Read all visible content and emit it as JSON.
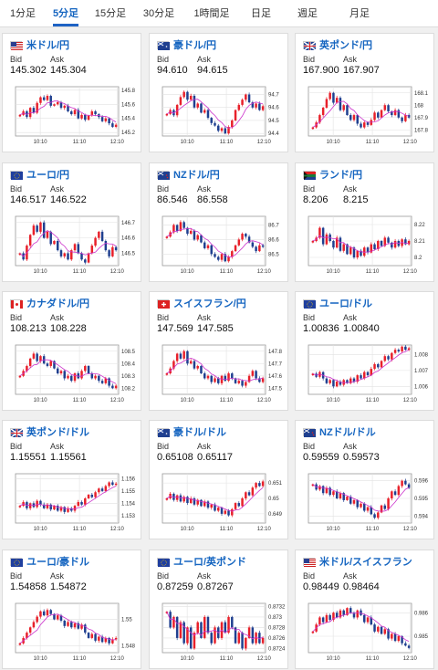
{
  "tabs": [
    {
      "label": "1分足",
      "active": false
    },
    {
      "label": "5分足",
      "active": true
    },
    {
      "label": "15分足",
      "active": false
    },
    {
      "label": "30分足",
      "active": false
    },
    {
      "label": "1時間足",
      "active": false
    },
    {
      "label": "日足",
      "active": false
    },
    {
      "label": "週足",
      "active": false
    },
    {
      "label": "月足",
      "active": false
    }
  ],
  "labels": {
    "bid": "Bid",
    "ask": "Ask"
  },
  "colors": {
    "accent": "#1565c0",
    "up": "#e8202a",
    "down": "#1f3f8f",
    "ma": "#cc33cc"
  },
  "x_ticks": [
    "10:10",
    "11:10",
    "12:10"
  ],
  "pairs": [
    {
      "name": "米ドル/円",
      "flag": "us-jp",
      "bid": "145.302",
      "ask": "145.304",
      "chart_data": {
        "type": "candlestick",
        "y_ticks": [
          "145.8",
          "145.6",
          "145.4",
          "145.2"
        ],
        "ylim": [
          145.15,
          145.85
        ],
        "close": [
          145.45,
          145.5,
          145.42,
          145.55,
          145.48,
          145.62,
          145.7,
          145.66,
          145.72,
          145.58,
          145.6,
          145.63,
          145.55,
          145.58,
          145.5,
          145.46,
          145.52,
          145.4,
          145.45,
          145.38,
          145.44,
          145.5,
          145.46,
          145.42,
          145.36,
          145.4,
          145.33,
          145.28,
          145.31
        ]
      }
    },
    {
      "name": "豪ドル/円",
      "flag": "au-jp",
      "bid": "94.610",
      "ask": "94.615",
      "chart_data": {
        "type": "candlestick",
        "y_ticks": [
          "94.7",
          "94.6",
          "94.5",
          "94.4"
        ],
        "ylim": [
          94.38,
          94.76
        ],
        "close": [
          94.55,
          94.58,
          94.54,
          94.62,
          94.68,
          94.72,
          94.66,
          94.69,
          94.6,
          94.63,
          94.56,
          94.58,
          94.52,
          94.48,
          94.46,
          94.42,
          94.44,
          94.4,
          94.45,
          94.5,
          94.58,
          94.62,
          94.66,
          94.7,
          94.64,
          94.6,
          94.63,
          94.58,
          94.61
        ]
      }
    },
    {
      "name": "英ポンド/円",
      "flag": "gb-jp",
      "bid": "167.900",
      "ask": "167.907",
      "chart_data": {
        "type": "candlestick",
        "y_ticks": [
          "168.1",
          "168",
          "167.9",
          "167.8"
        ],
        "ylim": [
          167.75,
          168.15
        ],
        "close": [
          167.82,
          167.86,
          167.92,
          167.98,
          168.05,
          168.1,
          168.02,
          168.06,
          167.96,
          168.0,
          167.92,
          167.88,
          167.92,
          167.85,
          167.82,
          167.86,
          167.84,
          167.88,
          167.94,
          167.9,
          167.96,
          168.0,
          167.95,
          167.92,
          167.96,
          167.9,
          167.87,
          167.92,
          167.9
        ]
      }
    },
    {
      "name": "ユーロ/円",
      "flag": "eu-jp",
      "bid": "146.517",
      "ask": "146.522",
      "chart_data": {
        "type": "candlestick",
        "y_ticks": [
          "146.7",
          "146.6",
          "146.5"
        ],
        "ylim": [
          146.42,
          146.74
        ],
        "close": [
          146.5,
          146.46,
          146.55,
          146.62,
          146.68,
          146.64,
          146.7,
          146.6,
          146.64,
          146.56,
          146.58,
          146.52,
          146.48,
          146.5,
          146.46,
          146.52,
          146.56,
          146.5,
          146.46,
          146.44,
          146.5,
          146.55,
          146.6,
          146.64,
          146.58,
          146.52,
          146.48,
          146.54,
          146.52
        ]
      }
    },
    {
      "name": "NZドル/円",
      "flag": "nz-jp",
      "bid": "86.546",
      "ask": "86.558",
      "chart_data": {
        "type": "candlestick",
        "y_ticks": [
          "86.7",
          "86.6",
          "86.5"
        ],
        "ylim": [
          86.42,
          86.76
        ],
        "close": [
          86.62,
          86.65,
          86.7,
          86.66,
          86.72,
          86.68,
          86.64,
          86.66,
          86.6,
          86.63,
          86.58,
          86.54,
          86.56,
          86.5,
          86.48,
          86.46,
          86.5,
          86.45,
          86.48,
          86.52,
          86.56,
          86.6,
          86.64,
          86.62,
          86.58,
          86.55,
          86.52,
          86.56,
          86.55
        ]
      }
    },
    {
      "name": "ランド/円",
      "flag": "za-jp",
      "bid": "8.206",
      "ask": "8.215",
      "chart_data": {
        "type": "candlestick",
        "y_ticks": [
          "8.22",
          "8.21",
          "8.2"
        ],
        "ylim": [
          8.195,
          8.225
        ],
        "close": [
          8.21,
          8.212,
          8.218,
          8.208,
          8.214,
          8.21,
          8.206,
          8.212,
          8.204,
          8.208,
          8.202,
          8.206,
          8.2,
          8.204,
          8.201,
          8.206,
          8.203,
          8.208,
          8.205,
          8.21,
          8.207,
          8.212,
          8.209,
          8.206,
          8.21,
          8.207,
          8.211,
          8.208,
          8.21
        ]
      }
    },
    {
      "name": "カナダドル/円",
      "flag": "ca-jp",
      "bid": "108.213",
      "ask": "108.228",
      "chart_data": {
        "type": "candlestick",
        "y_ticks": [
          "108.5",
          "108.4",
          "108.3",
          "108.2"
        ],
        "ylim": [
          108.15,
          108.55
        ],
        "close": [
          108.3,
          108.34,
          108.38,
          108.44,
          108.48,
          108.42,
          108.46,
          108.4,
          108.38,
          108.42,
          108.36,
          108.32,
          108.34,
          108.28,
          108.3,
          108.26,
          108.32,
          108.28,
          108.34,
          108.38,
          108.32,
          108.28,
          108.3,
          108.26,
          108.24,
          108.28,
          108.22,
          108.2,
          108.22
        ]
      }
    },
    {
      "name": "スイスフラン/円",
      "flag": "ch-jp",
      "bid": "147.569",
      "ask": "147.585",
      "chart_data": {
        "type": "candlestick",
        "y_ticks": [
          "147.8",
          "147.7",
          "147.6",
          "147.5"
        ],
        "ylim": [
          147.45,
          147.85
        ],
        "close": [
          147.62,
          147.66,
          147.72,
          147.78,
          147.74,
          147.8,
          147.7,
          147.72,
          147.66,
          147.68,
          147.62,
          147.58,
          147.6,
          147.55,
          147.58,
          147.54,
          147.6,
          147.56,
          147.62,
          147.58,
          147.54,
          147.56,
          147.52,
          147.55,
          147.6,
          147.64,
          147.58,
          147.55,
          147.58
        ]
      }
    },
    {
      "name": "ユーロ/ドル",
      "flag": "eu-us",
      "bid": "1.00836",
      "ask": "1.00840",
      "chart_data": {
        "type": "candlestick",
        "y_ticks": [
          "1.008",
          "1.007",
          "1.006"
        ],
        "ylim": [
          1.0055,
          1.0086
        ],
        "close": [
          1.0068,
          1.0066,
          1.0069,
          1.0065,
          1.0062,
          1.0064,
          1.006,
          1.0063,
          1.0061,
          1.0064,
          1.0062,
          1.0065,
          1.0063,
          1.0067,
          1.0065,
          1.0069,
          1.0067,
          1.0071,
          1.0074,
          1.0072,
          1.0076,
          1.0079,
          1.0077,
          1.0081,
          1.0083,
          1.0082,
          1.0085,
          1.0083,
          1.0084
        ]
      }
    },
    {
      "name": "英ポンド/ドル",
      "flag": "gb-us",
      "bid": "1.15551",
      "ask": "1.15561",
      "chart_data": {
        "type": "candlestick",
        "y_ticks": [
          "1.156",
          "1.155",
          "1.154",
          "1.153"
        ],
        "ylim": [
          1.1524,
          1.1564
        ],
        "close": [
          1.1538,
          1.1541,
          1.1536,
          1.154,
          1.1537,
          1.1542,
          1.1539,
          1.1536,
          1.1539,
          1.1535,
          1.1538,
          1.1534,
          1.1537,
          1.1533,
          1.1536,
          1.1534,
          1.1538,
          1.1541,
          1.1539,
          1.1544,
          1.1547,
          1.1545,
          1.1549,
          1.1552,
          1.155,
          1.1554,
          1.1557,
          1.1555,
          1.1556
        ]
      }
    },
    {
      "name": "豪ドル/ドル",
      "flag": "au-us",
      "bid": "0.65108",
      "ask": "0.65117",
      "chart_data": {
        "type": "candlestick",
        "y_ticks": [
          "0.651",
          "0.65",
          "0.649"
        ],
        "ylim": [
          0.6484,
          0.6516
        ],
        "close": [
          0.65,
          0.6503,
          0.6499,
          0.6502,
          0.6498,
          0.6501,
          0.6497,
          0.65,
          0.6496,
          0.6499,
          0.6495,
          0.6498,
          0.6494,
          0.6496,
          0.6492,
          0.6494,
          0.649,
          0.6492,
          0.6489,
          0.6493,
          0.6497,
          0.6495,
          0.65,
          0.6504,
          0.6502,
          0.6507,
          0.651,
          0.6508,
          0.6511
        ]
      }
    },
    {
      "name": "NZドル/ドル",
      "flag": "nz-us",
      "bid": "0.59559",
      "ask": "0.59573",
      "chart_data": {
        "type": "candlestick",
        "y_ticks": [
          "0.596",
          "0.595",
          "0.594"
        ],
        "ylim": [
          0.5936,
          0.5964
        ],
        "close": [
          0.5958,
          0.5955,
          0.5957,
          0.5953,
          0.5956,
          0.5952,
          0.5954,
          0.595,
          0.5953,
          0.5949,
          0.5951,
          0.5947,
          0.5949,
          0.5945,
          0.5947,
          0.5943,
          0.5945,
          0.5941,
          0.5939,
          0.5942,
          0.5946,
          0.5944,
          0.595,
          0.5954,
          0.5952,
          0.5957,
          0.596,
          0.5958,
          0.5956
        ]
      }
    },
    {
      "name": "ユーロ/豪ドル",
      "flag": "eu-au",
      "bid": "1.54858",
      "ask": "1.54872",
      "chart_data": {
        "type": "candlestick",
        "y_ticks": [
          "1.55",
          "1.548"
        ],
        "ylim": [
          1.5475,
          1.5512
        ],
        "close": [
          1.5482,
          1.5486,
          1.549,
          1.5494,
          1.5498,
          1.5502,
          1.5506,
          1.5503,
          1.5507,
          1.5504,
          1.55,
          1.5503,
          1.5499,
          1.5495,
          1.5498,
          1.5494,
          1.5497,
          1.5493,
          1.5496,
          1.549,
          1.5486,
          1.5489,
          1.5484,
          1.5487,
          1.5483,
          1.5486,
          1.5482,
          1.5485,
          1.5486
        ]
      }
    },
    {
      "name": "ユーロ/英ポンド",
      "flag": "eu-gb",
      "bid": "0.87259",
      "ask": "0.87267",
      "chart_data": {
        "type": "candlestick",
        "y_ticks": [
          "0.8732",
          "0.873",
          "0.8728",
          "0.8726",
          "0.8724"
        ],
        "ylim": [
          0.87232,
          0.87326
        ],
        "close": [
          0.8731,
          0.8728,
          0.873,
          0.8726,
          0.8729,
          0.8725,
          0.8728,
          0.8724,
          0.8727,
          0.8729,
          0.8726,
          0.873,
          0.8727,
          0.8725,
          0.8728,
          0.8726,
          0.8729,
          0.8727,
          0.873,
          0.8728,
          0.8725,
          0.8727,
          0.8724,
          0.8726,
          0.8728,
          0.8725,
          0.8727,
          0.8725,
          0.8726
        ]
      }
    },
    {
      "name": "米ドル/スイスフラン",
      "flag": "us-ch",
      "bid": "0.98449",
      "ask": "0.98464",
      "chart_data": {
        "type": "candlestick",
        "y_ticks": [
          "0.986",
          "0.985"
        ],
        "ylim": [
          0.9843,
          0.9864
        ],
        "close": [
          0.9852,
          0.9855,
          0.9858,
          0.9856,
          0.9859,
          0.9857,
          0.986,
          0.9858,
          0.9861,
          0.9859,
          0.9862,
          0.986,
          0.9858,
          0.9861,
          0.9859,
          0.9856,
          0.9858,
          0.9855,
          0.9852,
          0.9854,
          0.9851,
          0.9853,
          0.9849,
          0.9851,
          0.9848,
          0.985,
          0.9847,
          0.9846,
          0.9845
        ]
      }
    }
  ]
}
